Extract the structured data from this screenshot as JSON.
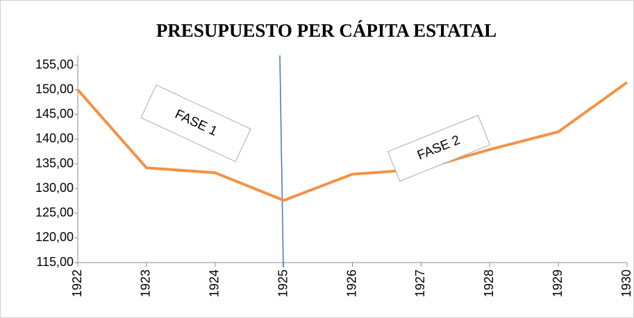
{
  "chart_data": {
    "type": "line",
    "title": "PRESUPUESTO PER CÁPITA ESTATAL",
    "categories": [
      "1922",
      "1923",
      "1924",
      "1925",
      "1926",
      "1927",
      "1928",
      "1929",
      "1930"
    ],
    "series": [
      {
        "name": "Presupuesto per cápita",
        "color": "#f39243",
        "values": [
          150.0,
          134.2,
          133.2,
          127.6,
          132.9,
          133.9,
          137.9,
          141.5,
          151.5
        ]
      }
    ],
    "ylim": [
      115,
      155
    ],
    "yticks": [
      {
        "value": 115,
        "label": "115,00"
      },
      {
        "value": 120,
        "label": "120,00"
      },
      {
        "value": 125,
        "label": "125,00"
      },
      {
        "value": 130,
        "label": "130,00"
      },
      {
        "value": 135,
        "label": "135,00"
      },
      {
        "value": 140,
        "label": "140,00"
      },
      {
        "value": 145,
        "label": "145,00"
      },
      {
        "value": 150,
        "label": "150,00"
      },
      {
        "value": 155,
        "label": "155,00"
      }
    ],
    "annotations": [
      "FASE 1",
      "FASE 2"
    ],
    "grid": false
  }
}
